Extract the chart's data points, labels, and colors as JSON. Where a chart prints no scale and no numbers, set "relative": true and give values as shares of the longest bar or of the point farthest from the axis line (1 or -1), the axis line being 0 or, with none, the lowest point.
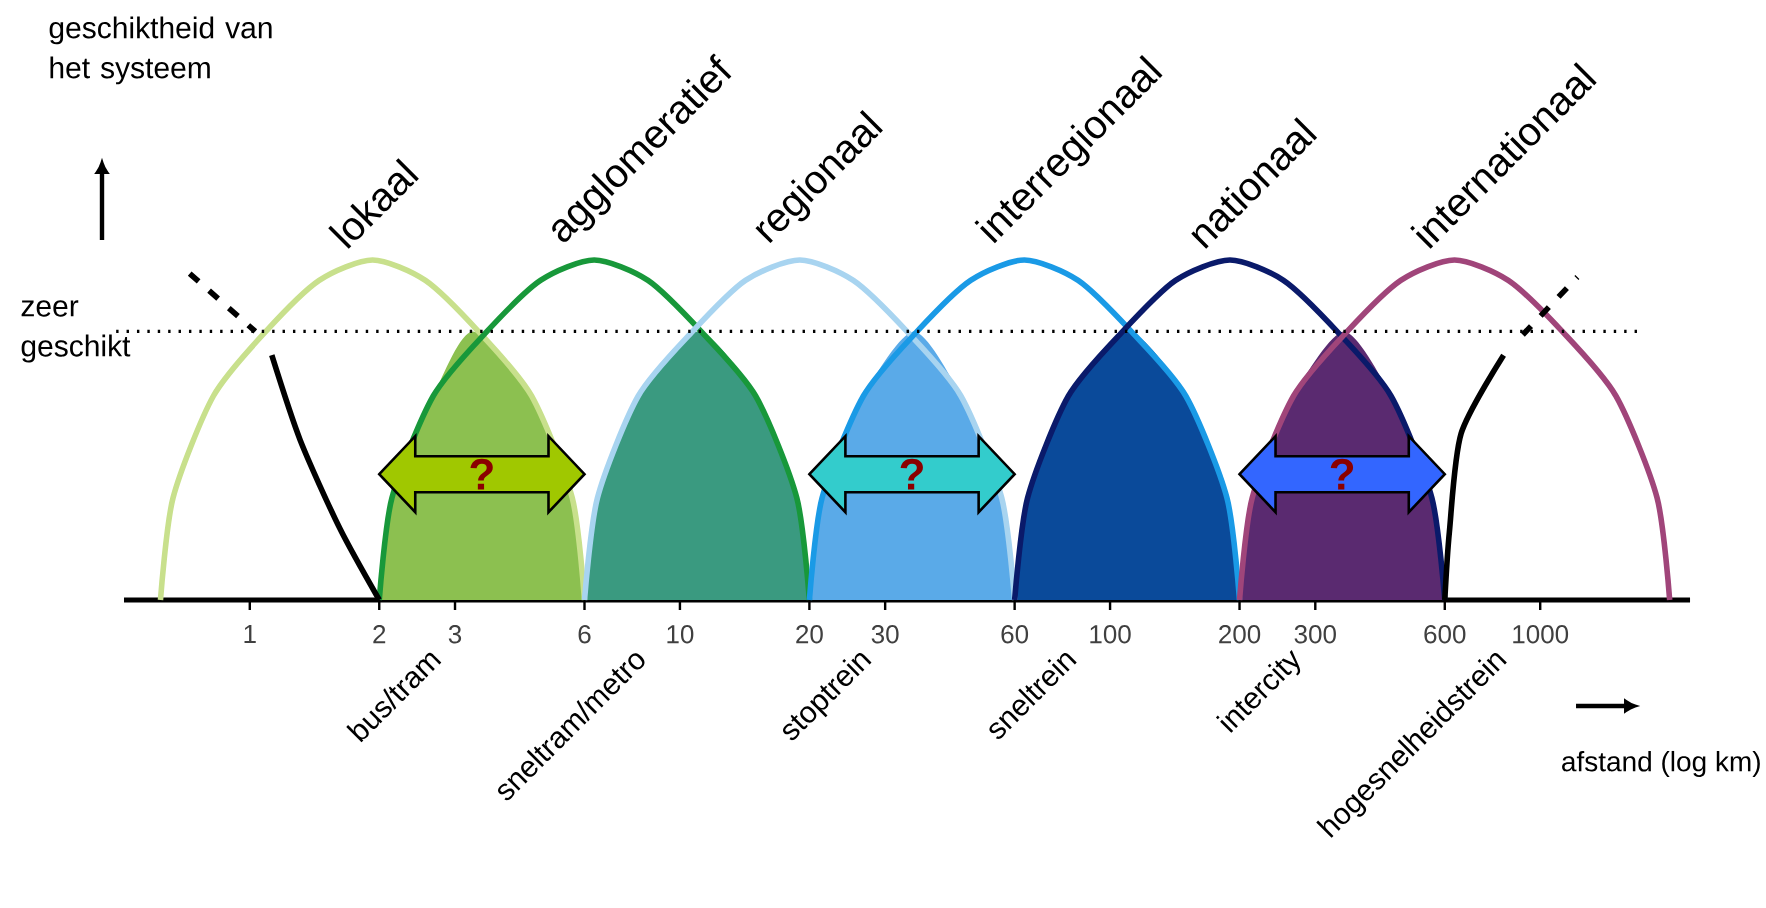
{
  "chart_data": {
    "type": "line",
    "relative": true,
    "log": "x",
    "xlabel": "afstand (log km)",
    "xlim": [
      0.51,
      2230
    ],
    "xticks": [
      1,
      2,
      3,
      6,
      10,
      20,
      30,
      60,
      100,
      200,
      300,
      600,
      1000
    ],
    "ref_lines": [
      {
        "axis": "y",
        "value": 0.79,
        "label": "zeer geschikt",
        "line_style": "dotted",
        "color": "#000000"
      }
    ],
    "annotations": [
      "geschiktheid van het systeem",
      "?",
      "?",
      "?",
      {
        "text": "bus/tram",
        "x": 2,
        "y": 0
      },
      {
        "text": "sneltram/metro",
        "x": 6,
        "y": 0
      },
      {
        "text": "stoptrein",
        "x": 20,
        "y": 0
      },
      {
        "text": "sneltrein",
        "x": 60,
        "y": 0
      },
      {
        "text": "intercity",
        "x": 200,
        "y": 0
      },
      {
        "text": "hogesnelheidstrein",
        "x": 600,
        "y": 0
      }
    ],
    "series": [
      {
        "type": "area",
        "color": "#8cc050",
        "x": [
          2,
          2.14,
          2.67,
          3.3,
          4.52,
          5.62,
          6
        ],
        "values": [
          0,
          0.3,
          0.6,
          0.79,
          0.6,
          0.3,
          0
        ]
      },
      {
        "type": "area",
        "color": "#3a9a80",
        "x": [
          6,
          6.43,
          8,
          11,
          15,
          18.7,
          20
        ],
        "values": [
          0,
          0.3,
          0.6,
          0.79,
          0.6,
          0.3,
          0
        ]
      },
      {
        "type": "area",
        "color": "#5aaae8",
        "x": [
          20,
          21.4,
          26.7,
          35,
          45,
          56,
          60
        ],
        "values": [
          0,
          0.3,
          0.6,
          0.79,
          0.6,
          0.3,
          0
        ]
      },
      {
        "type": "area",
        "color": "#0a4a9a",
        "x": [
          60,
          64.3,
          80,
          110,
          150,
          187,
          200
        ],
        "values": [
          0,
          0.3,
          0.6,
          0.79,
          0.6,
          0.3,
          0
        ]
      },
      {
        "type": "area",
        "color": "#5a2a70",
        "x": [
          200,
          214,
          267,
          350,
          450,
          560,
          600
        ],
        "values": [
          0,
          0.3,
          0.6,
          0.79,
          0.6,
          0.3,
          0
        ]
      },
      {
        "name": "lokaal",
        "color": "#c8e08c",
        "x": [
          0.62,
          0.663,
          0.823,
          1.09,
          1.45,
          1.93,
          2.56,
          3.4,
          4.52,
          5.62,
          6
        ],
        "values": [
          0,
          0.3,
          0.6,
          0.79,
          0.94,
          1,
          0.94,
          0.79,
          0.6,
          0.3,
          0
        ]
      },
      {
        "name": "agglomeratief",
        "color": "#18983a",
        "x": [
          2,
          2.14,
          2.67,
          3.56,
          4.74,
          6.32,
          8.43,
          11.2,
          15,
          18.7,
          20
        ],
        "values": [
          0,
          0.3,
          0.6,
          0.79,
          0.94,
          1,
          0.94,
          0.79,
          0.6,
          0.3,
          0
        ]
      },
      {
        "name": "regionaal",
        "color": "#a8d4f0",
        "x": [
          6,
          6.43,
          8,
          10.7,
          14.2,
          19,
          25.3,
          33.7,
          45,
          56,
          60
        ],
        "values": [
          0,
          0.3,
          0.6,
          0.79,
          0.94,
          1,
          0.94,
          0.79,
          0.6,
          0.3,
          0
        ]
      },
      {
        "name": "interregionaal",
        "color": "#1a9ae6",
        "x": [
          20,
          21.4,
          26.7,
          35.6,
          47.4,
          63.2,
          84.3,
          112,
          150,
          187,
          200
        ],
        "values": [
          0,
          0.3,
          0.6,
          0.79,
          0.94,
          1,
          0.94,
          0.79,
          0.6,
          0.3,
          0
        ]
      },
      {
        "name": "nationaal",
        "color": "#0a1a6a",
        "x": [
          60,
          64.3,
          80,
          107,
          142,
          190,
          253,
          337,
          450,
          560,
          600
        ],
        "values": [
          0,
          0.3,
          0.6,
          0.79,
          0.94,
          1,
          0.94,
          0.79,
          0.6,
          0.3,
          0
        ]
      },
      {
        "name": "internationaal",
        "color": "#a0457a",
        "x": [
          200,
          214,
          267,
          356,
          474,
          632,
          843,
          1125,
          1500,
          1870,
          2000
        ],
        "values": [
          0,
          0.3,
          0.6,
          0.79,
          0.94,
          1,
          0.94,
          0.79,
          0.6,
          0.3,
          0
        ]
      },
      {
        "color": "#000000",
        "line_style": "dashed",
        "x": [
          0.725,
          1.03
        ],
        "values": [
          0.96,
          0.79
        ]
      },
      {
        "color": "#000000",
        "x": [
          1.125,
          1.31,
          1.62,
          2
        ],
        "values": [
          0.72,
          0.47,
          0.21,
          0
        ]
      },
      {
        "color": "#000000",
        "x": [
          600,
          615,
          655,
          822
        ],
        "values": [
          0,
          0.2,
          0.49,
          0.72
        ]
      },
      {
        "color": "#000000",
        "line_style": "dashed",
        "x": [
          911,
          1220
        ],
        "values": [
          0.78,
          0.95
        ]
      }
    ]
  }
}
